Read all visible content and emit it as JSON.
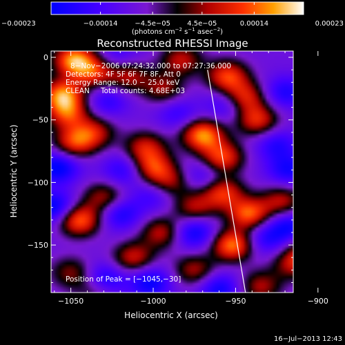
{
  "chart_data": {
    "type": "heatmap",
    "title": "Reconstructed RHESSI Image",
    "xlabel": "Heliocentric X (arcsec)",
    "ylabel": "Heliocentric Y (arcsec)",
    "xlim": [
      -1062,
      -915
    ],
    "ylim": [
      -188,
      5
    ],
    "xticks": [
      -1050,
      -1000,
      -950,
      -900
    ],
    "xtick_labels": [
      "−1050",
      "−1000",
      "−950",
      "−900"
    ],
    "yticks": [
      0,
      -50,
      -100,
      -150
    ],
    "ytick_labels": [
      "0",
      "−50",
      "−100",
      "−150"
    ],
    "colorbar": {
      "range": [
        -0.00023,
        0.00023
      ],
      "ticks": [
        -0.00023,
        -0.00014,
        -4.5e-05,
        4.5e-05,
        0.00014,
        0.00023
      ],
      "tick_labels": [
        "−0.00023",
        "−0.00014",
        "−4.5e−05",
        "4.5e−05",
        "0.00014",
        "0.00023"
      ],
      "unit_main": "(photons cm",
      "unit_exp1": "−2",
      "unit_mid": " s",
      "unit_exp2": "−1",
      "unit_end": " asec",
      "unit_exp3": "−2",
      "unit_close": ")"
    },
    "annotations": {
      "time_range": "8−Nov−2006 07:24:32.000 to 07:27:36.000",
      "detectors": "Detectors: 4F 5F 6F 7F 8F, Att 0",
      "energy": "Energy Range: 12.0 − 25.0 keV",
      "method": "CLEAN",
      "counts": "Total counts: 4.68E+03",
      "peak": "Position of Peak = [−1045,−30]"
    },
    "limb_line": [
      [
        -967,
        -10
      ],
      [
        -944,
        -188
      ]
    ],
    "blobs": [
      {
        "x": -1048,
        "y": -2,
        "v": 0.00023
      },
      {
        "x": -1055,
        "y": -30,
        "v": 0.00022
      },
      {
        "x": -1036,
        "y": -12,
        "v": 0.00015
      },
      {
        "x": -1052,
        "y": -45,
        "v": 0.00016
      },
      {
        "x": -1015,
        "y": -15,
        "v": 0.00012
      },
      {
        "x": -994,
        "y": -25,
        "v": 0.00011
      },
      {
        "x": -983,
        "y": -2,
        "v": 0.00013
      },
      {
        "x": -955,
        "y": -15,
        "v": 0.00018
      },
      {
        "x": -937,
        "y": -50,
        "v": 0.00016
      },
      {
        "x": -945,
        "y": -32,
        "v": 0.00017
      },
      {
        "x": -970,
        "y": -62,
        "v": 0.00023
      },
      {
        "x": -958,
        "y": -80,
        "v": 0.00018
      },
      {
        "x": -1036,
        "y": -60,
        "v": 0.00013
      },
      {
        "x": -1048,
        "y": -68,
        "v": 0.00016
      },
      {
        "x": -1005,
        "y": -72,
        "v": 0.00014
      },
      {
        "x": -1000,
        "y": -88,
        "v": 0.00016
      },
      {
        "x": -990,
        "y": -100,
        "v": 0.00011
      },
      {
        "x": -1030,
        "y": -112,
        "v": 0.00012
      },
      {
        "x": -1045,
        "y": -130,
        "v": 0.00021
      },
      {
        "x": -995,
        "y": -140,
        "v": 0.00013
      },
      {
        "x": -975,
        "y": -120,
        "v": 0.00012
      },
      {
        "x": -1012,
        "y": -160,
        "v": 0.00014
      },
      {
        "x": -952,
        "y": -150,
        "v": 0.00022
      },
      {
        "x": -942,
        "y": -125,
        "v": 0.0002
      },
      {
        "x": -958,
        "y": -108,
        "v": 0.00017
      },
      {
        "x": -922,
        "y": -115,
        "v": 0.00013
      },
      {
        "x": -905,
        "y": -155,
        "v": 0.00014
      },
      {
        "x": -915,
        "y": -165,
        "v": 0.00012
      },
      {
        "x": -935,
        "y": -183,
        "v": 0.00012
      },
      {
        "x": -1050,
        "y": -172,
        "v": 0.0001
      },
      {
        "x": -975,
        "y": -170,
        "v": 0.00012
      },
      {
        "x": -1035,
        "y": -185,
        "v": 9e-05
      },
      {
        "x": -1018,
        "y": -90,
        "v": -0.00012
      },
      {
        "x": -1058,
        "y": -88,
        "v": -0.00018
      },
      {
        "x": -1060,
        "y": -120,
        "v": -0.00018
      },
      {
        "x": -1020,
        "y": -125,
        "v": -0.00014
      },
      {
        "x": -1030,
        "y": -178,
        "v": -0.00017
      },
      {
        "x": -1002,
        "y": -180,
        "v": -0.00016
      },
      {
        "x": -1000,
        "y": -110,
        "v": -0.0001
      },
      {
        "x": -975,
        "y": -140,
        "v": -0.00016
      },
      {
        "x": -932,
        "y": -145,
        "v": -0.00012
      },
      {
        "x": -960,
        "y": -185,
        "v": -0.00015
      },
      {
        "x": -918,
        "y": -135,
        "v": -0.00015
      },
      {
        "x": -918,
        "y": -90,
        "v": -0.00014
      },
      {
        "x": -925,
        "y": -70,
        "v": -0.00012
      },
      {
        "x": -920,
        "y": -28,
        "v": -0.00013
      },
      {
        "x": -985,
        "y": -45,
        "v": -0.0001
      },
      {
        "x": -1028,
        "y": -35,
        "v": -0.00011
      },
      {
        "x": -1022,
        "y": 2,
        "v": -9e-05
      },
      {
        "x": -955,
        "y": -38,
        "v": -0.00012
      },
      {
        "x": -970,
        "y": -95,
        "v": -0.0001
      }
    ]
  },
  "footer": {
    "timestamp": "16−Jul−2013 12:43"
  }
}
